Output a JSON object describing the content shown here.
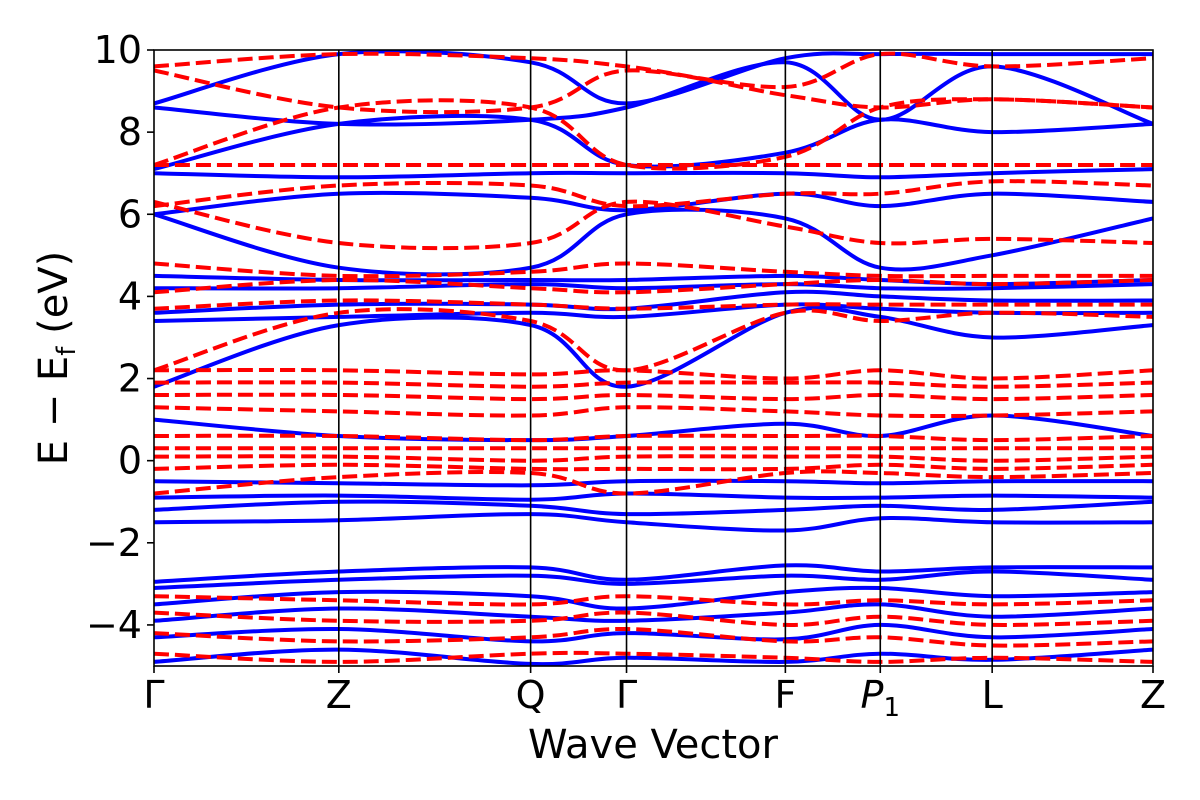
{
  "chart_data": {
    "type": "line",
    "title": "",
    "xlabel": "Wave Vector",
    "ylabel": "E − E",
    "ylabel_sub": "f",
    "ylabel_unit": " (eV)",
    "ylim": [
      -5,
      10
    ],
    "yticks": [
      {
        "value": 10,
        "label": "10"
      },
      {
        "value": 8,
        "label": "8"
      },
      {
        "value": 6,
        "label": "6"
      },
      {
        "value": 4,
        "label": "4"
      },
      {
        "value": 2,
        "label": "2"
      },
      {
        "value": 0,
        "label": "0"
      },
      {
        "value": -2,
        "label": "−2"
      },
      {
        "value": -4,
        "label": "−4"
      }
    ],
    "k_points": [
      {
        "label": "Γ",
        "sub": "",
        "x": 0.0
      },
      {
        "label": "Z",
        "sub": "",
        "x": 0.185
      },
      {
        "label": "Q",
        "sub": "",
        "x": 0.377
      },
      {
        "label": "Γ",
        "sub": "",
        "x": 0.473
      },
      {
        "label": "F",
        "sub": "",
        "x": 0.632
      },
      {
        "label": "P",
        "sub": "1",
        "x": 0.727
      },
      {
        "label": "L",
        "sub": "",
        "x": 0.839
      },
      {
        "label": "Z",
        "sub": "",
        "x": 1.0
      }
    ],
    "grid": false,
    "series": [
      {
        "style": "solid",
        "color": "#0000ff",
        "bands": [
          {
            "x": [
              0,
              0.185,
              0.377,
              0.473,
              0.632,
              0.727,
              0.839,
              1
            ],
            "y": [
              -4.9,
              -4.6,
              -4.95,
              -4.8,
              -4.9,
              -4.7,
              -4.85,
              -4.6
            ]
          },
          {
            "x": [
              0,
              0.185,
              0.377,
              0.473,
              0.632,
              0.727,
              0.839,
              1
            ],
            "y": [
              -4.3,
              -4.1,
              -4.4,
              -4.2,
              -4.35,
              -4.0,
              -4.3,
              -4.1
            ]
          },
          {
            "x": [
              0,
              0.185,
              0.377,
              0.473,
              0.632,
              0.727,
              0.839,
              1
            ],
            "y": [
              -3.9,
              -3.6,
              -3.8,
              -3.9,
              -3.7,
              -3.5,
              -3.8,
              -3.6
            ]
          },
          {
            "x": [
              0,
              0.185,
              0.377,
              0.473,
              0.632,
              0.727,
              0.839,
              1
            ],
            "y": [
              -3.5,
              -3.2,
              -3.3,
              -3.6,
              -3.2,
              -3.1,
              -3.3,
              -3.2
            ]
          },
          {
            "x": [
              0,
              0.185,
              0.377,
              0.473,
              0.632,
              0.727,
              0.839,
              1
            ],
            "y": [
              -3.1,
              -2.9,
              -2.8,
              -3.0,
              -2.8,
              -2.9,
              -2.7,
              -2.9
            ]
          },
          {
            "x": [
              0,
              0.185,
              0.377,
              0.473,
              0.632,
              0.727,
              0.839,
              1
            ],
            "y": [
              -2.95,
              -2.7,
              -2.6,
              -2.9,
              -2.55,
              -2.7,
              -2.6,
              -2.6
            ]
          },
          {
            "x": [
              0,
              0.185,
              0.377,
              0.473,
              0.632,
              0.727,
              0.839,
              1
            ],
            "y": [
              -1.5,
              -1.45,
              -1.3,
              -1.5,
              -1.7,
              -1.4,
              -1.5,
              -1.5
            ]
          },
          {
            "x": [
              0,
              0.185,
              0.377,
              0.473,
              0.632,
              0.727,
              0.839,
              1
            ],
            "y": [
              -1.2,
              -1.0,
              -1.1,
              -1.3,
              -1.2,
              -1.1,
              -1.2,
              -1.0
            ]
          },
          {
            "x": [
              0,
              0.185,
              0.377,
              0.473,
              0.632,
              0.727,
              0.839,
              1
            ],
            "y": [
              -0.9,
              -0.85,
              -0.95,
              -0.8,
              -0.9,
              -0.9,
              -0.85,
              -0.9
            ]
          },
          {
            "x": [
              0,
              0.185,
              0.377,
              0.473,
              0.632,
              0.727,
              0.839,
              1
            ],
            "y": [
              -0.5,
              -0.55,
              -0.6,
              -0.5,
              -0.5,
              -0.55,
              -0.5,
              -0.5
            ]
          },
          {
            "x": [
              0,
              0.185,
              0.377,
              0.473,
              0.632,
              0.727,
              0.839,
              1
            ],
            "y": [
              1.0,
              0.6,
              0.5,
              0.6,
              0.9,
              0.6,
              1.1,
              0.6
            ]
          },
          {
            "x": [
              0,
              0.185,
              0.377,
              0.473,
              0.632,
              0.727,
              0.839,
              1
            ],
            "y": [
              1.8,
              3.3,
              3.3,
              1.8,
              3.6,
              3.5,
              3.0,
              3.3
            ]
          },
          {
            "x": [
              0,
              0.185,
              0.377,
              0.473,
              0.632,
              0.727,
              0.839,
              1
            ],
            "y": [
              3.4,
              3.5,
              3.6,
              3.5,
              3.8,
              3.7,
              3.6,
              3.6
            ]
          },
          {
            "x": [
              0,
              0.185,
              0.377,
              0.473,
              0.632,
              0.727,
              0.839,
              1
            ],
            "y": [
              3.6,
              3.8,
              3.8,
              3.7,
              4.1,
              4.0,
              3.9,
              3.9
            ]
          },
          {
            "x": [
              0,
              0.185,
              0.377,
              0.473,
              0.632,
              0.727,
              0.839,
              1
            ],
            "y": [
              4.2,
              4.2,
              4.3,
              4.2,
              4.3,
              4.2,
              4.2,
              4.3
            ]
          },
          {
            "x": [
              0,
              0.185,
              0.377,
              0.473,
              0.632,
              0.727,
              0.839,
              1
            ],
            "y": [
              4.5,
              4.4,
              4.4,
              4.4,
              4.5,
              4.4,
              4.3,
              4.4
            ]
          },
          {
            "x": [
              0,
              0.185,
              0.377,
              0.473,
              0.632,
              0.727,
              0.839,
              1
            ],
            "y": [
              6.0,
              4.7,
              4.7,
              6.0,
              5.9,
              4.7,
              5.0,
              5.9
            ]
          },
          {
            "x": [
              0,
              0.185,
              0.377,
              0.473,
              0.632,
              0.727,
              0.839,
              1
            ],
            "y": [
              6.0,
              6.5,
              6.4,
              6.1,
              6.5,
              6.2,
              6.5,
              6.3
            ]
          },
          {
            "x": [
              0,
              0.185,
              0.377,
              0.473,
              0.632,
              0.727,
              0.839,
              1
            ],
            "y": [
              7.0,
              6.9,
              7.0,
              7.0,
              7.0,
              6.9,
              7.0,
              7.1
            ]
          },
          {
            "x": [
              0,
              0.185,
              0.377,
              0.473,
              0.632,
              0.727,
              0.839,
              1
            ],
            "y": [
              7.1,
              8.2,
              8.3,
              7.2,
              7.5,
              8.3,
              8.0,
              8.2
            ]
          },
          {
            "x": [
              0,
              0.185,
              0.377,
              0.473,
              0.632,
              0.727,
              0.839,
              1
            ],
            "y": [
              8.6,
              8.2,
              8.3,
              8.6,
              9.7,
              8.3,
              9.6,
              8.2
            ]
          },
          {
            "x": [
              0,
              0.185,
              0.377,
              0.473,
              0.632,
              0.727,
              0.839,
              1
            ],
            "y": [
              8.7,
              9.9,
              9.7,
              8.7,
              9.8,
              9.9,
              9.9,
              9.9
            ]
          }
        ]
      },
      {
        "style": "dashed",
        "color": "#ff0000",
        "bands": [
          {
            "x": [
              0,
              0.185,
              0.377,
              0.473,
              0.632,
              0.727,
              0.839,
              1
            ],
            "y": [
              -4.7,
              -4.9,
              -4.7,
              -4.7,
              -4.8,
              -4.9,
              -4.8,
              -4.9
            ]
          },
          {
            "x": [
              0,
              0.185,
              0.377,
              0.473,
              0.632,
              0.727,
              0.839,
              1
            ],
            "y": [
              -4.2,
              -4.4,
              -4.3,
              -4.1,
              -4.4,
              -4.3,
              -4.5,
              -4.4
            ]
          },
          {
            "x": [
              0,
              0.185,
              0.377,
              0.473,
              0.632,
              0.727,
              0.839,
              1
            ],
            "y": [
              -3.7,
              -3.9,
              -3.9,
              -3.7,
              -4.0,
              -3.8,
              -4.0,
              -3.9
            ]
          },
          {
            "x": [
              0,
              0.185,
              0.377,
              0.473,
              0.632,
              0.727,
              0.839,
              1
            ],
            "y": [
              -3.3,
              -3.4,
              -3.5,
              -3.3,
              -3.5,
              -3.4,
              -3.5,
              -3.4
            ]
          },
          {
            "x": [
              0,
              0.185,
              0.377,
              0.473,
              0.632,
              0.727,
              0.839,
              1
            ],
            "y": [
              -0.8,
              -0.4,
              -0.3,
              -0.8,
              -0.3,
              -0.3,
              -0.4,
              -0.3
            ]
          },
          {
            "x": [
              0,
              0.185,
              0.377,
              0.473,
              0.632,
              0.727,
              0.839,
              1
            ],
            "y": [
              -0.2,
              -0.1,
              -0.2,
              -0.2,
              -0.2,
              -0.1,
              -0.2,
              -0.1
            ]
          },
          {
            "x": [
              0,
              0.185,
              0.377,
              0.473,
              0.632,
              0.727,
              0.839,
              1
            ],
            "y": [
              0.1,
              0.1,
              0.0,
              0.1,
              0.1,
              0.1,
              0.0,
              0.1
            ]
          },
          {
            "x": [
              0,
              0.185,
              0.377,
              0.473,
              0.632,
              0.727,
              0.839,
              1
            ],
            "y": [
              0.3,
              0.3,
              0.3,
              0.3,
              0.3,
              0.3,
              0.3,
              0.3
            ]
          },
          {
            "x": [
              0,
              0.185,
              0.377,
              0.473,
              0.632,
              0.727,
              0.839,
              1
            ],
            "y": [
              0.6,
              0.6,
              0.5,
              0.6,
              0.6,
              0.6,
              0.5,
              0.6
            ]
          },
          {
            "x": [
              0,
              0.185,
              0.377,
              0.473,
              0.632,
              0.727,
              0.839,
              1
            ],
            "y": [
              1.3,
              1.2,
              1.1,
              1.3,
              1.2,
              1.1,
              1.1,
              1.2
            ]
          },
          {
            "x": [
              0,
              0.185,
              0.377,
              0.473,
              0.632,
              0.727,
              0.839,
              1
            ],
            "y": [
              1.6,
              1.6,
              1.5,
              1.6,
              1.5,
              1.6,
              1.5,
              1.6
            ]
          },
          {
            "x": [
              0,
              0.185,
              0.377,
              0.473,
              0.632,
              0.727,
              0.839,
              1
            ],
            "y": [
              1.9,
              1.9,
              1.8,
              1.9,
              1.9,
              1.9,
              1.8,
              1.9
            ]
          },
          {
            "x": [
              0,
              0.185,
              0.377,
              0.473,
              0.632,
              0.727,
              0.839,
              1
            ],
            "y": [
              2.2,
              2.2,
              2.1,
              2.2,
              2.0,
              2.2,
              2.0,
              2.2
            ]
          },
          {
            "x": [
              0,
              0.185,
              0.377,
              0.473,
              0.632,
              0.727,
              0.839,
              1
            ],
            "y": [
              2.2,
              3.6,
              3.4,
              2.2,
              3.6,
              3.4,
              3.6,
              3.5
            ]
          },
          {
            "x": [
              0,
              0.185,
              0.377,
              0.473,
              0.632,
              0.727,
              0.839,
              1
            ],
            "y": [
              3.7,
              3.9,
              3.8,
              3.7,
              3.8,
              3.8,
              3.8,
              3.8
            ]
          },
          {
            "x": [
              0,
              0.185,
              0.377,
              0.473,
              0.632,
              0.727,
              0.839,
              1
            ],
            "y": [
              4.1,
              4.4,
              4.2,
              4.1,
              4.3,
              4.4,
              4.3,
              4.4
            ]
          },
          {
            "x": [
              0,
              0.185,
              0.377,
              0.473,
              0.632,
              0.727,
              0.839,
              1
            ],
            "y": [
              4.8,
              4.5,
              4.6,
              4.8,
              4.6,
              4.5,
              4.5,
              4.5
            ]
          },
          {
            "x": [
              0,
              0.185,
              0.377,
              0.473,
              0.632,
              0.727,
              0.839,
              1
            ],
            "y": [
              6.3,
              5.3,
              5.3,
              6.3,
              5.7,
              5.3,
              5.4,
              5.3
            ]
          },
          {
            "x": [
              0,
              0.185,
              0.377,
              0.473,
              0.632,
              0.727,
              0.839,
              1
            ],
            "y": [
              6.2,
              6.7,
              6.7,
              6.2,
              6.5,
              6.5,
              6.8,
              6.7
            ]
          },
          {
            "x": [
              0,
              0.185,
              0.377,
              0.473,
              0.632,
              0.727,
              0.839,
              1
            ],
            "y": [
              7.2,
              7.2,
              7.2,
              7.2,
              7.2,
              7.2,
              7.2,
              7.2
            ]
          },
          {
            "x": [
              0,
              0.185,
              0.377,
              0.473,
              0.632,
              0.727,
              0.839,
              1
            ],
            "y": [
              7.2,
              8.6,
              8.6,
              7.2,
              7.4,
              8.6,
              8.8,
              8.6
            ]
          },
          {
            "x": [
              0,
              0.185,
              0.377,
              0.473,
              0.632,
              0.727,
              0.839,
              1
            ],
            "y": [
              9.5,
              8.6,
              8.6,
              9.5,
              8.9,
              8.6,
              8.8,
              8.6
            ]
          },
          {
            "x": [
              0,
              0.185,
              0.377,
              0.473,
              0.632,
              0.727,
              0.839,
              1
            ],
            "y": [
              9.6,
              9.9,
              9.8,
              9.6,
              9.1,
              9.9,
              9.6,
              9.8
            ]
          }
        ]
      }
    ]
  }
}
